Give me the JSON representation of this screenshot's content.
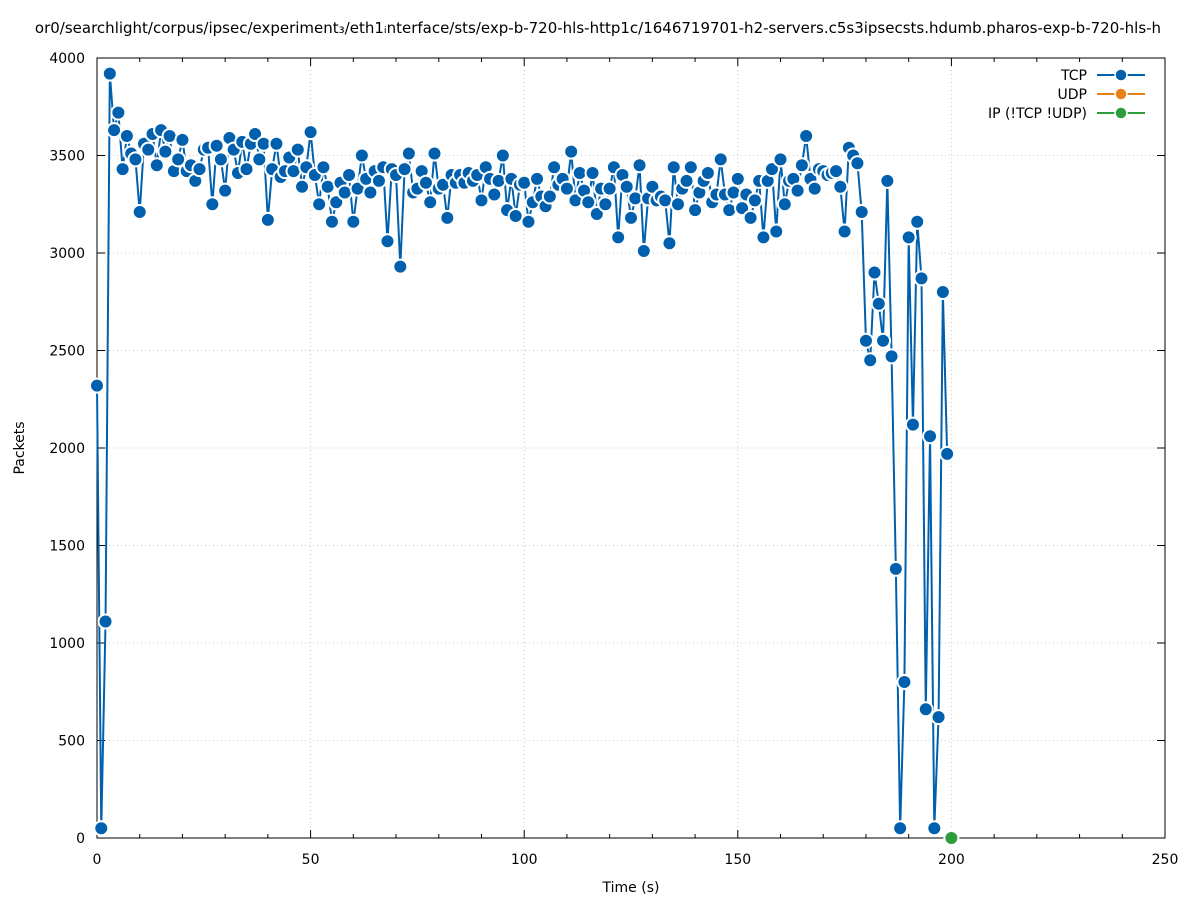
{
  "chart_data": {
    "type": "line",
    "title": "or0/searchlight/corpus/ipsec/experiment₃/eth1ᵢnterface/sts/exp-b-720-hls-http1c/1646719701-h2-servers.c5s3ipsecsts.hdumb.pharos-exp-b-720-hls-h",
    "xlabel": "Time (s)",
    "ylabel": "Packets",
    "xlim": [
      0,
      250
    ],
    "ylim": [
      0,
      4000
    ],
    "x_ticks": [
      "0",
      "50",
      "100",
      "150",
      "200",
      "250"
    ],
    "y_ticks": [
      "0",
      "500",
      "1000",
      "1500",
      "2000",
      "2500",
      "3000",
      "3500",
      "4000"
    ],
    "grid": true,
    "legend_position": "top-right",
    "series": [
      {
        "name": "TCP",
        "color": "#0060ad",
        "points": [
          [
            0,
            2320
          ],
          [
            1,
            50
          ],
          [
            2,
            1110
          ],
          [
            3,
            3920
          ],
          [
            4,
            3630
          ],
          [
            5,
            3720
          ],
          [
            6,
            3430
          ],
          [
            7,
            3600
          ],
          [
            8,
            3510
          ],
          [
            9,
            3480
          ],
          [
            10,
            3210
          ],
          [
            11,
            3560
          ],
          [
            12,
            3530
          ],
          [
            13,
            3610
          ],
          [
            14,
            3450
          ],
          [
            15,
            3630
          ],
          [
            16,
            3520
          ],
          [
            17,
            3600
          ],
          [
            18,
            3420
          ],
          [
            19,
            3480
          ],
          [
            20,
            3580
          ],
          [
            21,
            3420
          ],
          [
            22,
            3450
          ],
          [
            23,
            3370
          ],
          [
            24,
            3430
          ],
          [
            25,
            3530
          ],
          [
            26,
            3540
          ],
          [
            27,
            3250
          ],
          [
            28,
            3550
          ],
          [
            29,
            3480
          ],
          [
            30,
            3320
          ],
          [
            31,
            3590
          ],
          [
            32,
            3530
          ],
          [
            33,
            3410
          ],
          [
            34,
            3570
          ],
          [
            35,
            3430
          ],
          [
            36,
            3560
          ],
          [
            37,
            3610
          ],
          [
            38,
            3480
          ],
          [
            39,
            3560
          ],
          [
            40,
            3170
          ],
          [
            41,
            3430
          ],
          [
            42,
            3560
          ],
          [
            43,
            3390
          ],
          [
            44,
            3420
          ],
          [
            45,
            3490
          ],
          [
            46,
            3420
          ],
          [
            47,
            3530
          ],
          [
            48,
            3340
          ],
          [
            49,
            3440
          ],
          [
            50,
            3620
          ],
          [
            51,
            3400
          ],
          [
            52,
            3250
          ],
          [
            53,
            3440
          ],
          [
            54,
            3340
          ],
          [
            55,
            3160
          ],
          [
            56,
            3260
          ],
          [
            57,
            3360
          ],
          [
            58,
            3310
          ],
          [
            59,
            3400
          ],
          [
            60,
            3160
          ],
          [
            61,
            3330
          ],
          [
            62,
            3500
          ],
          [
            63,
            3380
          ],
          [
            64,
            3310
          ],
          [
            65,
            3420
          ],
          [
            66,
            3370
          ],
          [
            67,
            3440
          ],
          [
            68,
            3060
          ],
          [
            69,
            3430
          ],
          [
            70,
            3400
          ],
          [
            71,
            2930
          ],
          [
            72,
            3430
          ],
          [
            73,
            3510
          ],
          [
            74,
            3310
          ],
          [
            75,
            3330
          ],
          [
            76,
            3420
          ],
          [
            77,
            3360
          ],
          [
            78,
            3260
          ],
          [
            79,
            3510
          ],
          [
            80,
            3330
          ],
          [
            81,
            3350
          ],
          [
            82,
            3180
          ],
          [
            83,
            3400
          ],
          [
            84,
            3360
          ],
          [
            85,
            3400
          ],
          [
            86,
            3360
          ],
          [
            87,
            3410
          ],
          [
            88,
            3370
          ],
          [
            89,
            3400
          ],
          [
            90,
            3270
          ],
          [
            91,
            3440
          ],
          [
            92,
            3380
          ],
          [
            93,
            3300
          ],
          [
            94,
            3370
          ],
          [
            95,
            3500
          ],
          [
            96,
            3220
          ],
          [
            97,
            3380
          ],
          [
            98,
            3190
          ],
          [
            99,
            3350
          ],
          [
            100,
            3360
          ],
          [
            101,
            3160
          ],
          [
            102,
            3260
          ],
          [
            103,
            3380
          ],
          [
            104,
            3290
          ],
          [
            105,
            3240
          ],
          [
            106,
            3290
          ],
          [
            107,
            3440
          ],
          [
            108,
            3350
          ],
          [
            109,
            3380
          ],
          [
            110,
            3330
          ],
          [
            111,
            3520
          ],
          [
            112,
            3270
          ],
          [
            113,
            3410
          ],
          [
            114,
            3320
          ],
          [
            115,
            3260
          ],
          [
            116,
            3410
          ],
          [
            117,
            3200
          ],
          [
            118,
            3330
          ],
          [
            119,
            3250
          ],
          [
            120,
            3330
          ],
          [
            121,
            3440
          ],
          [
            122,
            3080
          ],
          [
            123,
            3400
          ],
          [
            124,
            3340
          ],
          [
            125,
            3180
          ],
          [
            126,
            3280
          ],
          [
            127,
            3450
          ],
          [
            128,
            3010
          ],
          [
            129,
            3280
          ],
          [
            130,
            3340
          ],
          [
            131,
            3270
          ],
          [
            132,
            3290
          ],
          [
            133,
            3270
          ],
          [
            134,
            3050
          ],
          [
            135,
            3440
          ],
          [
            136,
            3250
          ],
          [
            137,
            3330
          ],
          [
            138,
            3370
          ],
          [
            139,
            3440
          ],
          [
            140,
            3220
          ],
          [
            141,
            3310
          ],
          [
            142,
            3370
          ],
          [
            143,
            3410
          ],
          [
            144,
            3260
          ],
          [
            145,
            3300
          ],
          [
            146,
            3480
          ],
          [
            147,
            3300
          ],
          [
            148,
            3220
          ],
          [
            149,
            3310
          ],
          [
            150,
            3380
          ],
          [
            151,
            3230
          ],
          [
            152,
            3300
          ],
          [
            153,
            3180
          ],
          [
            154,
            3270
          ],
          [
            155,
            3370
          ],
          [
            156,
            3080
          ],
          [
            157,
            3370
          ],
          [
            158,
            3430
          ],
          [
            159,
            3110
          ],
          [
            160,
            3480
          ],
          [
            161,
            3250
          ],
          [
            162,
            3370
          ],
          [
            163,
            3380
          ],
          [
            164,
            3320
          ],
          [
            165,
            3450
          ],
          [
            166,
            3600
          ],
          [
            167,
            3380
          ],
          [
            168,
            3330
          ],
          [
            169,
            3430
          ],
          [
            170,
            3420
          ],
          [
            171,
            3400
          ],
          [
            172,
            3410
          ],
          [
            173,
            3420
          ],
          [
            174,
            3340
          ],
          [
            175,
            3110
          ],
          [
            176,
            3540
          ],
          [
            177,
            3500
          ],
          [
            178,
            3460
          ],
          [
            179,
            3210
          ],
          [
            180,
            2550
          ],
          [
            181,
            2450
          ],
          [
            182,
            2900
          ],
          [
            183,
            2740
          ],
          [
            184,
            2550
          ],
          [
            185,
            3370
          ],
          [
            186,
            2470
          ],
          [
            187,
            1380
          ],
          [
            188,
            50
          ],
          [
            189,
            800
          ],
          [
            190,
            3080
          ],
          [
            191,
            2120
          ],
          [
            192,
            3160
          ],
          [
            193,
            2870
          ],
          [
            194,
            660
          ],
          [
            195,
            2060
          ],
          [
            196,
            50
          ],
          [
            197,
            620
          ],
          [
            198,
            2800
          ],
          [
            199,
            1970
          ]
        ]
      },
      {
        "name": "UDP",
        "color": "#e8811a",
        "points": []
      },
      {
        "name": "IP (!TCP  !UDP)",
        "color": "#2c9d3a",
        "points": [
          [
            200,
            0
          ]
        ]
      }
    ]
  }
}
